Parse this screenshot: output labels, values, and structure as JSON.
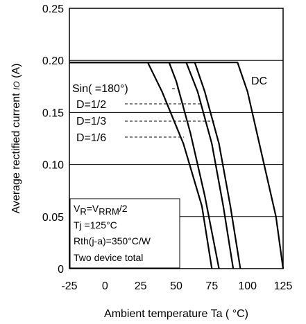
{
  "chart_data": {
    "type": "line",
    "xlabel": "Ambient temperature  Ta  ( °C)",
    "ylabel": "Average rectified current",
    "ylabel_unit": "(A)",
    "ylabel_symbol": "IO",
    "x_ticks": [
      -25,
      0,
      25,
      50,
      75,
      100,
      125
    ],
    "y_ticks": [
      "0",
      "0.05",
      "0.10",
      "0.15",
      "0.20",
      "0.25"
    ],
    "y_tick_values": [
      0,
      0.05,
      0.1,
      0.15,
      0.2,
      0.25
    ],
    "xlim": [
      -25,
      125
    ],
    "ylim": [
      0,
      0.25
    ],
    "grid": true,
    "series": [
      {
        "name": "Sin(  =180°)",
        "x": [
          -25,
          45,
          50,
          60,
          70,
          80
        ],
        "y": [
          0.198,
          0.198,
          0.18,
          0.13,
          0.07,
          0
        ]
      },
      {
        "name": "D=1/2",
        "x": [
          -25,
          57,
          65,
          75,
          83,
          90
        ],
        "y": [
          0.198,
          0.198,
          0.17,
          0.12,
          0.06,
          0
        ]
      },
      {
        "name": "D=1/3",
        "x": [
          -25,
          63,
          70,
          80,
          88,
          95
        ],
        "y": [
          0.198,
          0.198,
          0.17,
          0.12,
          0.06,
          0
        ]
      },
      {
        "name": "D=1/6",
        "x": [
          -25,
          30,
          40,
          55,
          68,
          75
        ],
        "y": [
          0.198,
          0.198,
          0.17,
          0.12,
          0.06,
          0
        ]
      },
      {
        "name": "DC",
        "x": [
          -25,
          93,
          100,
          110,
          120,
          125
        ],
        "y": [
          0.198,
          0.198,
          0.17,
          0.11,
          0.05,
          0
        ]
      }
    ],
    "legend_labels": [
      {
        "text": "Sin(  =180°)",
        "series": 0
      },
      {
        "text": "D=1/2",
        "series": 1
      },
      {
        "text": "D=1/3",
        "series": 2
      },
      {
        "text": "D=1/6",
        "series": 3
      },
      {
        "text": "DC",
        "series": 4
      }
    ],
    "conditions": [
      {
        "text": "VR=VRRM/2"
      },
      {
        "text": "Tj =125°C"
      },
      {
        "text": "Rth(j-a)=350°C/W"
      },
      {
        "text": "Two device total"
      }
    ]
  }
}
